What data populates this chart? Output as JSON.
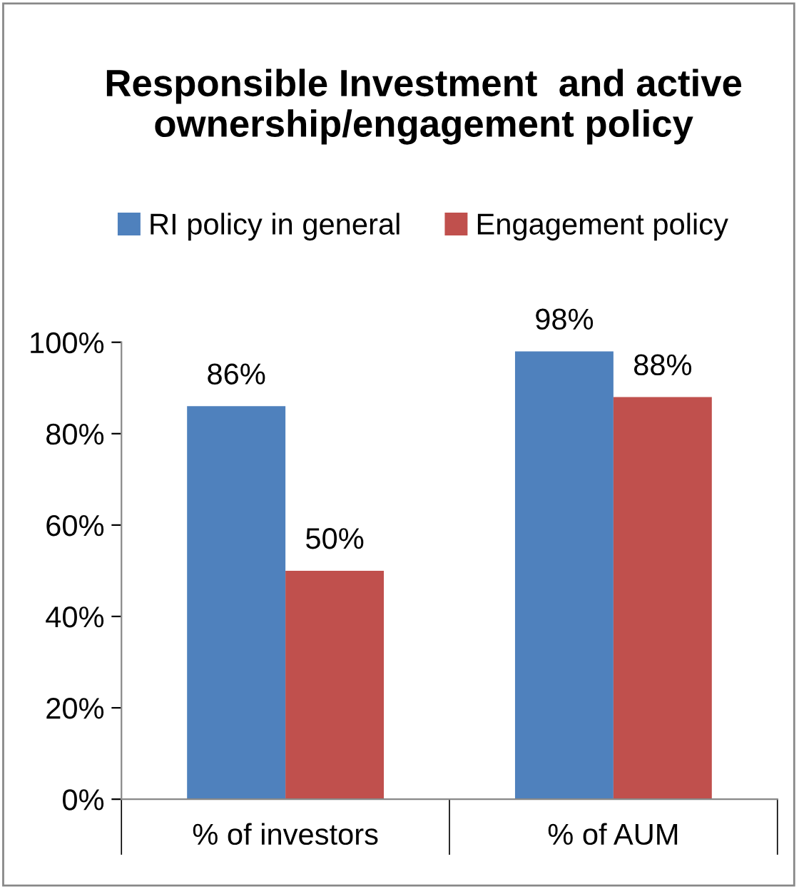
{
  "chart_data": {
    "type": "bar",
    "title": "Responsible Investment  and active ownership/engagement policy",
    "categories": [
      "% of investors",
      "% of AUM"
    ],
    "series": [
      {
        "name": "RI policy in general",
        "color": "#4f81bd",
        "values": [
          86,
          98
        ],
        "value_labels": [
          "86%",
          "98%"
        ]
      },
      {
        "name": "Engagement policy",
        "color": "#c0504d",
        "values": [
          50,
          88
        ],
        "value_labels": [
          "50%",
          "88%"
        ]
      }
    ],
    "ylim": [
      0,
      100
    ],
    "yticks": [
      {
        "value": 0,
        "label": "0%"
      },
      {
        "value": 20,
        "label": "20%"
      },
      {
        "value": 40,
        "label": "40%"
      },
      {
        "value": 60,
        "label": "60%"
      },
      {
        "value": 80,
        "label": "80%"
      },
      {
        "value": 100,
        "label": "100%"
      }
    ],
    "grid": false,
    "legend": "top"
  }
}
